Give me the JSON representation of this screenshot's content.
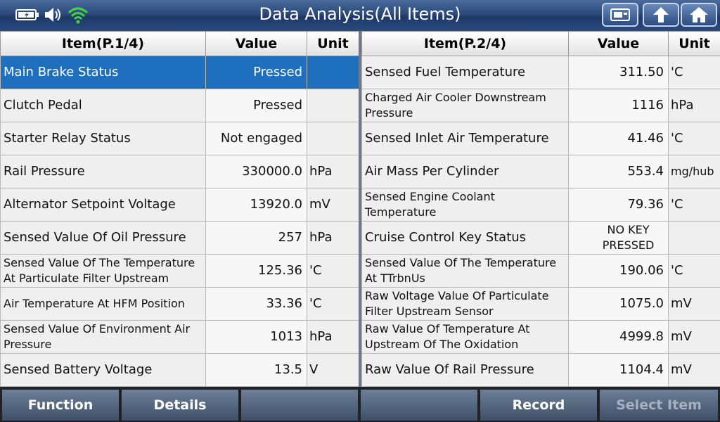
{
  "title": "Data Analysis(All Items)",
  "left_table": {
    "headers": [
      "Item(P.1/4)",
      "Value",
      "Unit"
    ],
    "rows": [
      {
        "item": "Main Brake Status",
        "value": "Pressed",
        "unit": ""
      },
      {
        "item": "Clutch Pedal",
        "value": "Pressed",
        "unit": ""
      },
      {
        "item": "Starter Relay Status",
        "value": "Not engaged",
        "unit": ""
      },
      {
        "item": "Rail Pressure",
        "value": "330000.0",
        "unit": "hPa"
      },
      {
        "item": "Alternator Setpoint Voltage",
        "value": "13920.0",
        "unit": "mV"
      },
      {
        "item": "Sensed Value Of Oil Pressure",
        "value": "257",
        "unit": "hPa"
      },
      {
        "item": "Sensed Value Of The Temperature At Particulate Filter Upstream",
        "value": "125.36",
        "unit": "'C"
      },
      {
        "item": "Air Temperature At HFM Position",
        "value": "33.36",
        "unit": "'C"
      },
      {
        "item": "Sensed Value Of Environment Air Pressure",
        "value": "1013",
        "unit": "hPa"
      },
      {
        "item": "Sensed Battery Voltage",
        "value": "13.5",
        "unit": "V"
      }
    ]
  },
  "right_table": {
    "headers": [
      "Item(P.2/4)",
      "Value",
      "Unit"
    ],
    "rows": [
      {
        "item": "Sensed Fuel Temperature",
        "value": "311.50",
        "unit": "'C"
      },
      {
        "item": "Charged Air Cooler Downstream Pressure",
        "value": "1116",
        "unit": "hPa"
      },
      {
        "item": "Sensed Inlet Air Temperature",
        "value": "41.46",
        "unit": "'C"
      },
      {
        "item": "Air Mass Per Cylinder",
        "value": "553.4",
        "unit": "mg/hub"
      },
      {
        "item": "Sensed Engine Coolant Temperature",
        "value": "79.36",
        "unit": "'C"
      },
      {
        "item": "Cruise Control Key Status",
        "value": "NO KEY PRESSED",
        "unit": ""
      },
      {
        "item": "Sensed Value Of The Temperature At TTrbnUs",
        "value": "190.06",
        "unit": "'C"
      },
      {
        "item": "Raw Voltage Value Of Particulate Filter Upstream Sensor",
        "value": "1075.0",
        "unit": "mV"
      },
      {
        "item": "Raw Value Of Temperature At Upstream Of The Oxidation",
        "value": "4999.8",
        "unit": "mV"
      },
      {
        "item": "Raw Value Of Rail Pressure",
        "value": "1104.4",
        "unit": "mV"
      }
    ]
  },
  "bottom_buttons": [
    "Function",
    "Details",
    "",
    "",
    "Record",
    "Select Item"
  ],
  "icons": {
    "status": [
      "battery-icon",
      "speaker-icon",
      "wifi-icon"
    ],
    "nav": [
      "screenshot-icon",
      "back-icon",
      "home-icon"
    ]
  },
  "colors": {
    "selected_row": "#1f6fbf",
    "title_bar": "#2c4a7c",
    "wifi": "#3fd43f"
  }
}
